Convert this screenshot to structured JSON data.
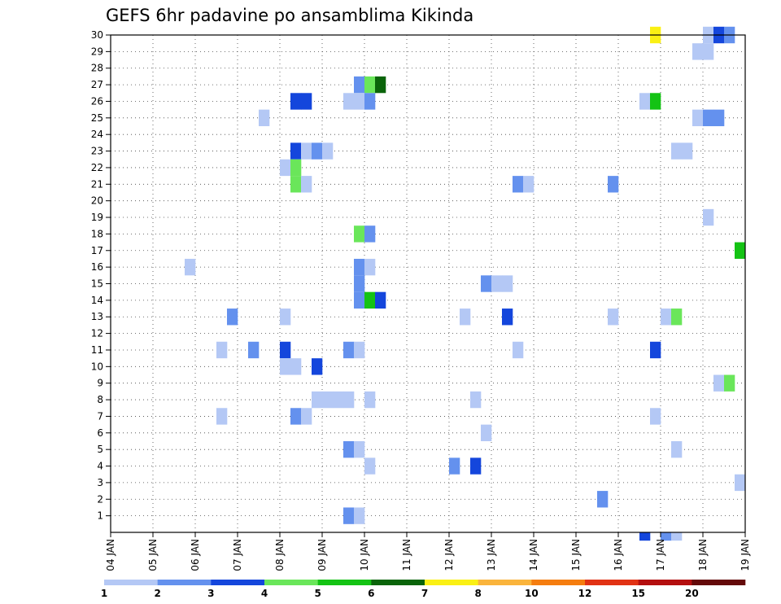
{
  "chart_data": {
    "type": "heatmap",
    "title": "GEFS 6hr padavine po ansamblima Kikinda",
    "xlabel": "",
    "ylabel": "",
    "x_ticks": [
      "04 JAN",
      "05 JAN",
      "06 JAN",
      "07 JAN",
      "08 JAN",
      "09 JAN",
      "10 JAN",
      "11 JAN",
      "12 JAN",
      "13 JAN",
      "14 JAN",
      "15 JAN",
      "16 JAN",
      "17 JAN",
      "18 JAN",
      "19 JAN"
    ],
    "y_ticks": [
      "1",
      "2",
      "3",
      "4",
      "5",
      "6",
      "7",
      "8",
      "9",
      "10",
      "11",
      "12",
      "13",
      "14",
      "15",
      "16",
      "17",
      "18",
      "19",
      "20",
      "21",
      "22",
      "23",
      "24",
      "25",
      "26",
      "27",
      "28",
      "29",
      "30"
    ],
    "xlim": [
      "04 JAN 00Z",
      "19 JAN 00Z"
    ],
    "step_hours": 6,
    "grid": true,
    "legend": {
      "position": "bottom",
      "ticks": [
        "1",
        "2",
        "3",
        "4",
        "5",
        "6",
        "7",
        "8",
        "10",
        "12",
        "15",
        "20"
      ],
      "colors": [
        "#b4c8f5",
        "#6491ee",
        "#1446dc",
        "#6ae65a",
        "#14c314",
        "#0a640a",
        "#faf014",
        "#fab43c",
        "#f57d0f",
        "#e13214",
        "#b40f0f",
        "#640a0a"
      ]
    },
    "cells": [
      {
        "member": 30,
        "time": "16 JAN 18Z",
        "level": 7
      },
      {
        "member": 30,
        "time": "18 JAN 00Z",
        "level": 1
      },
      {
        "member": 30,
        "time": "18 JAN 06Z",
        "level": 3
      },
      {
        "member": 30,
        "time": "18 JAN 12Z",
        "level": 2
      },
      {
        "member": 29,
        "time": "17 JAN 18Z",
        "level": 1
      },
      {
        "member": 29,
        "time": "18 JAN 00Z",
        "level": 1
      },
      {
        "member": 27,
        "time": "09 JAN 18Z",
        "level": 2
      },
      {
        "member": 27,
        "time": "10 JAN 00Z",
        "level": 4
      },
      {
        "member": 27,
        "time": "10 JAN 06Z",
        "level": 6
      },
      {
        "member": 26,
        "time": "08 JAN 06Z",
        "level": 3
      },
      {
        "member": 26,
        "time": "08 JAN 12Z",
        "level": 3
      },
      {
        "member": 26,
        "time": "09 JAN 12Z",
        "level": 1
      },
      {
        "member": 26,
        "time": "09 JAN 18Z",
        "level": 1
      },
      {
        "member": 26,
        "time": "10 JAN 00Z",
        "level": 2
      },
      {
        "member": 26,
        "time": "16 JAN 12Z",
        "level": 1
      },
      {
        "member": 26,
        "time": "16 JAN 18Z",
        "level": 5
      },
      {
        "member": 25,
        "time": "07 JAN 12Z",
        "level": 1
      },
      {
        "member": 25,
        "time": "17 JAN 18Z",
        "level": 1
      },
      {
        "member": 25,
        "time": "18 JAN 00Z",
        "level": 2
      },
      {
        "member": 25,
        "time": "18 JAN 06Z",
        "level": 2
      },
      {
        "member": 23,
        "time": "08 JAN 06Z",
        "level": 3
      },
      {
        "member": 23,
        "time": "08 JAN 12Z",
        "level": 1
      },
      {
        "member": 23,
        "time": "08 JAN 18Z",
        "level": 2
      },
      {
        "member": 23,
        "time": "09 JAN 00Z",
        "level": 1
      },
      {
        "member": 23,
        "time": "17 JAN 06Z",
        "level": 1
      },
      {
        "member": 23,
        "time": "17 JAN 12Z",
        "level": 1
      },
      {
        "member": 22,
        "time": "08 JAN 00Z",
        "level": 1
      },
      {
        "member": 22,
        "time": "08 JAN 06Z",
        "level": 4
      },
      {
        "member": 21,
        "time": "08 JAN 06Z",
        "level": 4
      },
      {
        "member": 21,
        "time": "08 JAN 12Z",
        "level": 1
      },
      {
        "member": 21,
        "time": "13 JAN 12Z",
        "level": 2
      },
      {
        "member": 21,
        "time": "13 JAN 18Z",
        "level": 1
      },
      {
        "member": 21,
        "time": "15 JAN 18Z",
        "level": 2
      },
      {
        "member": 19,
        "time": "18 JAN 00Z",
        "level": 1
      },
      {
        "member": 18,
        "time": "09 JAN 18Z",
        "level": 4
      },
      {
        "member": 18,
        "time": "10 JAN 00Z",
        "level": 2
      },
      {
        "member": 17,
        "time": "18 JAN 18Z",
        "level": 5
      },
      {
        "member": 16,
        "time": "05 JAN 18Z",
        "level": 1
      },
      {
        "member": 16,
        "time": "09 JAN 18Z",
        "level": 2
      },
      {
        "member": 16,
        "time": "10 JAN 00Z",
        "level": 1
      },
      {
        "member": 15,
        "time": "09 JAN 18Z",
        "level": 2
      },
      {
        "member": 15,
        "time": "12 JAN 18Z",
        "level": 2
      },
      {
        "member": 15,
        "time": "13 JAN 00Z",
        "level": 1
      },
      {
        "member": 15,
        "time": "13 JAN 06Z",
        "level": 1
      },
      {
        "member": 14,
        "time": "09 JAN 18Z",
        "level": 2
      },
      {
        "member": 14,
        "time": "10 JAN 00Z",
        "level": 5
      },
      {
        "member": 14,
        "time": "10 JAN 06Z",
        "level": 3
      },
      {
        "member": 13,
        "time": "06 JAN 18Z",
        "level": 2
      },
      {
        "member": 13,
        "time": "08 JAN 00Z",
        "level": 1
      },
      {
        "member": 13,
        "time": "12 JAN 06Z",
        "level": 1
      },
      {
        "member": 13,
        "time": "13 JAN 06Z",
        "level": 3
      },
      {
        "member": 13,
        "time": "15 JAN 18Z",
        "level": 1
      },
      {
        "member": 13,
        "time": "17 JAN 00Z",
        "level": 1
      },
      {
        "member": 13,
        "time": "17 JAN 06Z",
        "level": 4
      },
      {
        "member": 11,
        "time": "06 JAN 12Z",
        "level": 1
      },
      {
        "member": 11,
        "time": "07 JAN 06Z",
        "level": 2
      },
      {
        "member": 11,
        "time": "08 JAN 00Z",
        "level": 3
      },
      {
        "member": 11,
        "time": "09 JAN 12Z",
        "level": 2
      },
      {
        "member": 11,
        "time": "09 JAN 18Z",
        "level": 1
      },
      {
        "member": 11,
        "time": "13 JAN 12Z",
        "level": 1
      },
      {
        "member": 11,
        "time": "16 JAN 18Z",
        "level": 3
      },
      {
        "member": 10,
        "time": "08 JAN 00Z",
        "level": 1
      },
      {
        "member": 10,
        "time": "08 JAN 06Z",
        "level": 1
      },
      {
        "member": 10,
        "time": "08 JAN 18Z",
        "level": 3
      },
      {
        "member": 9,
        "time": "18 JAN 06Z",
        "level": 1
      },
      {
        "member": 9,
        "time": "18 JAN 12Z",
        "level": 4
      },
      {
        "member": 8,
        "time": "08 JAN 18Z",
        "level": 1
      },
      {
        "member": 8,
        "time": "09 JAN 00Z",
        "level": 1
      },
      {
        "member": 8,
        "time": "09 JAN 06Z",
        "level": 1
      },
      {
        "member": 8,
        "time": "09 JAN 12Z",
        "level": 1
      },
      {
        "member": 8,
        "time": "10 JAN 00Z",
        "level": 1
      },
      {
        "member": 8,
        "time": "12 JAN 12Z",
        "level": 1
      },
      {
        "member": 7,
        "time": "06 JAN 12Z",
        "level": 1
      },
      {
        "member": 7,
        "time": "08 JAN 06Z",
        "level": 2
      },
      {
        "member": 7,
        "time": "08 JAN 12Z",
        "level": 1
      },
      {
        "member": 7,
        "time": "16 JAN 18Z",
        "level": 1
      },
      {
        "member": 6,
        "time": "12 JAN 18Z",
        "level": 1
      },
      {
        "member": 5,
        "time": "09 JAN 12Z",
        "level": 2
      },
      {
        "member": 5,
        "time": "09 JAN 18Z",
        "level": 1
      },
      {
        "member": 5,
        "time": "17 JAN 06Z",
        "level": 1
      },
      {
        "member": 4,
        "time": "10 JAN 00Z",
        "level": 1
      },
      {
        "member": 4,
        "time": "12 JAN 00Z",
        "level": 2
      },
      {
        "member": 4,
        "time": "12 JAN 12Z",
        "level": 3
      },
      {
        "member": 3,
        "time": "18 JAN 18Z",
        "level": 1
      },
      {
        "member": 2,
        "time": "15 JAN 12Z",
        "level": 2
      },
      {
        "member": 1,
        "time": "09 JAN 12Z",
        "level": 2
      },
      {
        "member": 1,
        "time": "09 JAN 18Z",
        "level": 1
      },
      {
        "member": 0,
        "time": "16 JAN 12Z",
        "level": 3
      },
      {
        "member": 0,
        "time": "17 JAN 00Z",
        "level": 2
      },
      {
        "member": 0,
        "time": "17 JAN 06Z",
        "level": 1
      }
    ]
  }
}
